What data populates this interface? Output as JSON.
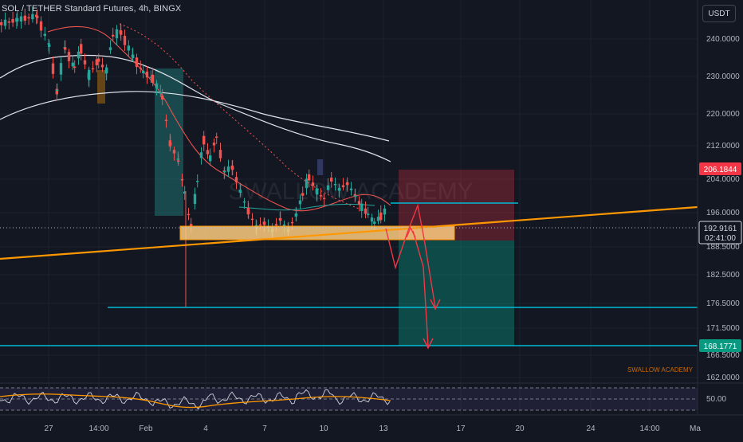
{
  "header": {
    "title": "SOL / TETHER Standard Futures, 4h, BINGX",
    "currency": "USDT"
  },
  "watermark": "SWALLOW ACADEMY",
  "signature": "SWALLOW ACADEMY",
  "price_axis": {
    "ticks": [
      "240.0000",
      "230.0000",
      "220.0000",
      "212.0000",
      "204.0000",
      "196.0000",
      "188.5000",
      "182.5000",
      "176.5000",
      "171.5000",
      "166.5000",
      "162.0000"
    ],
    "badges": {
      "stop": "206.1844",
      "current": "192.9161",
      "countdown": "02:41:00",
      "target": "168.1771"
    }
  },
  "time_axis": {
    "labels": [
      "27",
      "14:00",
      "Feb",
      "4",
      "7",
      "10",
      "13",
      "17",
      "20",
      "24",
      "14:00",
      "Ma"
    ]
  },
  "oscillator": {
    "level_label": "50.00"
  },
  "colors": {
    "background": "#131722",
    "grid": "#1e222d",
    "bull": "#26a69a",
    "bear": "#ef5350",
    "support_zone": "#ffcc80",
    "trendline": "#ff9800",
    "target_line": "#00bcd4",
    "target_badge": "#089981",
    "stop_badge": "#f23645"
  },
  "icons": {
    "projection": "arrow-path-icon"
  }
}
